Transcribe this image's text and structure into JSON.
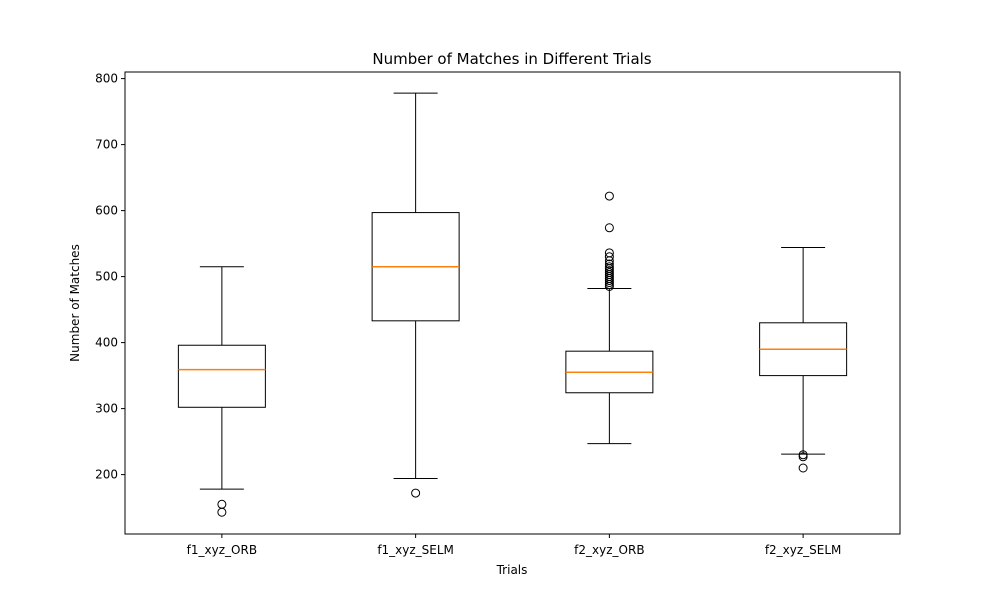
{
  "chart_data": {
    "type": "box",
    "title": "Number of Matches in Different Trials",
    "xlabel": "Trials",
    "ylabel": "Number of Matches",
    "ylim": [
      110,
      810
    ],
    "yticks": [
      200,
      300,
      400,
      500,
      600,
      700,
      800
    ],
    "grid": false,
    "categories": [
      "f1_xyz_ORB",
      "f1_xyz_SELM",
      "f2_xyz_ORB",
      "f2_xyz_SELM"
    ],
    "boxes": [
      {
        "category": "f1_xyz_ORB",
        "whisker_low": 178,
        "q1": 302,
        "median": 359,
        "q3": 396,
        "whisker_high": 515,
        "outliers": [
          155,
          143
        ]
      },
      {
        "category": "f1_xyz_SELM",
        "whisker_low": 194,
        "q1": 433,
        "median": 515,
        "q3": 597,
        "whisker_high": 778,
        "outliers": [
          172
        ]
      },
      {
        "category": "f2_xyz_ORB",
        "whisker_low": 247,
        "q1": 324,
        "median": 355,
        "q3": 387,
        "whisker_high": 482,
        "outliers": [
          622,
          574,
          536,
          530,
          524,
          519,
          515,
          512,
          509,
          506,
          503,
          500,
          497,
          494,
          491,
          488,
          485
        ]
      },
      {
        "category": "f2_xyz_SELM",
        "whisker_low": 231,
        "q1": 350,
        "median": 390,
        "q3": 430,
        "whisker_high": 544,
        "outliers": [
          230,
          227,
          210
        ]
      }
    ],
    "colors": {
      "box": "#000000",
      "median": "#ff7f0e",
      "background": "#ffffff"
    }
  }
}
